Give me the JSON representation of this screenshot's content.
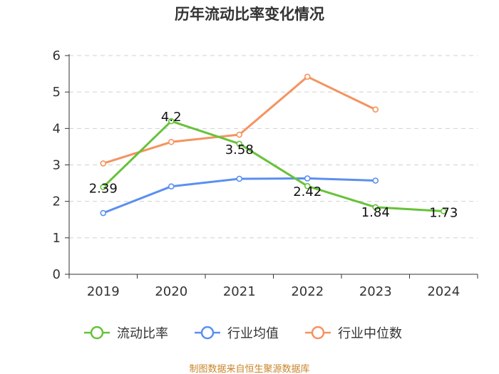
{
  "chart_data": {
    "type": "line",
    "title": "历年流动比率变化情况",
    "categories": [
      "2019",
      "2020",
      "2021",
      "2022",
      "2023",
      "2024"
    ],
    "ylim": [
      0,
      6
    ],
    "yticks": [
      "0",
      "1",
      "2",
      "3",
      "4",
      "5",
      "6"
    ],
    "xlabel": "",
    "ylabel": "",
    "grid": true,
    "legend_position": "bottom",
    "series": [
      {
        "name": "流动比率",
        "color": "#67c23a",
        "values": [
          2.39,
          4.2,
          3.58,
          2.42,
          1.84,
          1.73
        ],
        "labels": [
          "2.39",
          "4.2",
          "3.58",
          "2.42",
          "1.84",
          "1.73"
        ]
      },
      {
        "name": "行业均值",
        "color": "#5b8ff0",
        "values": [
          1.68,
          2.41,
          2.62,
          2.63,
          2.57,
          null
        ]
      },
      {
        "name": "行业中位数",
        "color": "#f5935f",
        "values": [
          3.04,
          3.63,
          3.83,
          5.42,
          4.52,
          null
        ]
      }
    ],
    "source": "制图数据来自恒生聚源数据库"
  }
}
